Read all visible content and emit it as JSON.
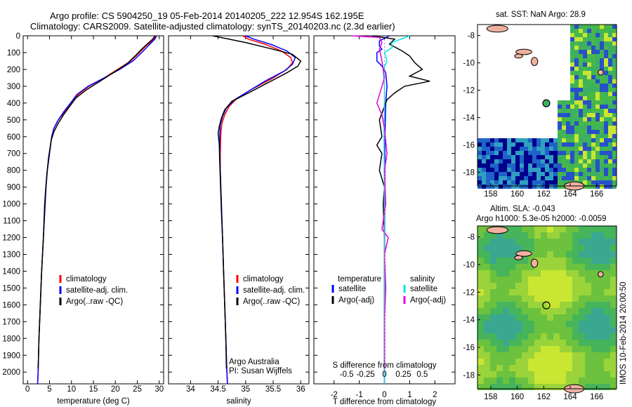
{
  "title": {
    "line1": "Argo profile: CS 5904250_19 05-Feb-2014 20140205_222 12.954S 162.195E",
    "line2": "Climatology: CARS2009. Satellite-adjusted climatology: synTS_20140203.nc (2.3d earlier)"
  },
  "side_stamp": "IMOS 10-Feb-2014 20:00:50",
  "chart_data": [
    {
      "type": "line",
      "xlabel": "temperature (deg C)",
      "ylim": [
        0,
        2070
      ],
      "xlim": [
        -1,
        31
      ],
      "xticks": [
        0,
        5,
        10,
        15,
        20,
        25,
        30
      ],
      "yticks": [
        0,
        100,
        200,
        300,
        400,
        500,
        600,
        700,
        800,
        900,
        1000,
        1100,
        1200,
        1300,
        1400,
        1500,
        1600,
        1700,
        1800,
        1900,
        2000
      ],
      "legend": {
        "position": "lower-center",
        "entries": [
          "climatology",
          "satellite-adj. clim.",
          "Argo(..raw -QC)"
        ]
      },
      "series": [
        {
          "name": "climatology",
          "color": "#ff0000",
          "points": [
            [
              29.2,
              0
            ],
            [
              28.8,
              20
            ],
            [
              27,
              60
            ],
            [
              25.5,
              100
            ],
            [
              23.5,
              150
            ],
            [
              20.5,
              200
            ],
            [
              17.5,
              250
            ],
            [
              14,
              300
            ],
            [
              11.5,
              350
            ],
            [
              10,
              400
            ],
            [
              8.5,
              450
            ],
            [
              7,
              500
            ],
            [
              6,
              550
            ],
            [
              5.5,
              600
            ],
            [
              5,
              700
            ],
            [
              4.5,
              800
            ],
            [
              4.2,
              900
            ],
            [
              4,
              1000
            ],
            [
              3.6,
              1200
            ],
            [
              3.2,
              1400
            ],
            [
              2.9,
              1600
            ],
            [
              2.6,
              1800
            ],
            [
              2.4,
              2000
            ],
            [
              2.3,
              2070
            ]
          ]
        },
        {
          "name": "satellite-adj. clim.",
          "color": "#0000ff",
          "points": [
            [
              29.4,
              0
            ],
            [
              29,
              20
            ],
            [
              27.5,
              60
            ],
            [
              26,
              100
            ],
            [
              24,
              150
            ],
            [
              21,
              200
            ],
            [
              17.5,
              250
            ],
            [
              13.8,
              300
            ],
            [
              11.2,
              350
            ],
            [
              9.8,
              400
            ],
            [
              8.3,
              450
            ],
            [
              7,
              500
            ],
            [
              6,
              550
            ],
            [
              5.5,
              600
            ],
            [
              5,
              700
            ],
            [
              4.5,
              800
            ],
            [
              4.2,
              900
            ],
            [
              4,
              1000
            ],
            [
              3.6,
              1200
            ],
            [
              3.2,
              1400
            ],
            [
              2.9,
              1600
            ],
            [
              2.6,
              1800
            ],
            [
              2.4,
              2000
            ],
            [
              2.3,
              2070
            ]
          ]
        },
        {
          "name": "Argo(..raw -QC)",
          "color": "#000000",
          "points": [
            [
              29,
              0
            ],
            [
              28.5,
              20
            ],
            [
              27.2,
              50
            ],
            [
              26,
              80
            ],
            [
              24.5,
              120
            ],
            [
              22.5,
              170
            ],
            [
              19.5,
              220
            ],
            [
              16.5,
              270
            ],
            [
              13.5,
              320
            ],
            [
              11,
              370
            ],
            [
              9.6,
              420
            ],
            [
              8.2,
              470
            ],
            [
              7,
              520
            ],
            [
              6,
              570
            ],
            [
              5.4,
              620
            ],
            [
              4.8,
              720
            ],
            [
              4.4,
              820
            ],
            [
              4.1,
              920
            ],
            [
              3.9,
              1000
            ],
            [
              3.6,
              1200
            ],
            [
              3.2,
              1400
            ],
            [
              2.9,
              1600
            ],
            [
              2.6,
              1800
            ],
            [
              2.4,
              1980
            ]
          ]
        }
      ]
    },
    {
      "type": "line",
      "xlabel": "salinity",
      "ylim": [
        0,
        2070
      ],
      "xlim": [
        33.6,
        36.15
      ],
      "xticks": [
        34,
        34.5,
        35,
        35.5,
        36
      ],
      "legend": {
        "position": "lower-center",
        "entries": [
          "climatology",
          "satellite-adj. clim.",
          "Argo(..raw -QC)"
        ]
      },
      "annotation": {
        "line1": "Argo Australia",
        "line2": "PI: Susan Wijffels"
      },
      "series": [
        {
          "name": "climatology",
          "color": "#ff0000",
          "points": [
            [
              34.95,
              0
            ],
            [
              35.05,
              20
            ],
            [
              35.35,
              50
            ],
            [
              35.65,
              90
            ],
            [
              35.82,
              130
            ],
            [
              35.85,
              160
            ],
            [
              35.75,
              200
            ],
            [
              35.45,
              260
            ],
            [
              35.1,
              320
            ],
            [
              34.85,
              370
            ],
            [
              34.7,
              420
            ],
            [
              34.62,
              470
            ],
            [
              34.57,
              520
            ],
            [
              34.55,
              580
            ],
            [
              34.54,
              700
            ],
            [
              34.54,
              800
            ],
            [
              34.55,
              900
            ],
            [
              34.56,
              1000
            ],
            [
              34.58,
              1200
            ],
            [
              34.6,
              1400
            ],
            [
              34.62,
              1600
            ],
            [
              34.64,
              1800
            ],
            [
              34.66,
              2000
            ],
            [
              34.67,
              2070
            ]
          ]
        },
        {
          "name": "satellite-adj. clim.",
          "color": "#0000ff",
          "points": [
            [
              35,
              0
            ],
            [
              35.15,
              20
            ],
            [
              35.45,
              50
            ],
            [
              35.75,
              90
            ],
            [
              35.9,
              130
            ],
            [
              35.85,
              170
            ],
            [
              35.7,
              210
            ],
            [
              35.35,
              270
            ],
            [
              35.05,
              330
            ],
            [
              34.8,
              380
            ],
            [
              34.65,
              430
            ],
            [
              34.58,
              480
            ],
            [
              34.54,
              530
            ],
            [
              34.53,
              600
            ],
            [
              34.53,
              700
            ],
            [
              34.54,
              800
            ],
            [
              34.55,
              900
            ],
            [
              34.56,
              1000
            ],
            [
              34.58,
              1200
            ],
            [
              34.6,
              1400
            ],
            [
              34.62,
              1600
            ],
            [
              34.64,
              1800
            ],
            [
              34.66,
              2000
            ],
            [
              34.67,
              2070
            ]
          ]
        },
        {
          "name": "Argo(..raw -QC)",
          "color": "#000000",
          "points": [
            [
              34.4,
              0
            ],
            [
              34.55,
              10
            ],
            [
              35,
              40
            ],
            [
              35.5,
              80
            ],
            [
              35.85,
              110
            ],
            [
              36.0,
              150
            ],
            [
              35.95,
              180
            ],
            [
              35.75,
              220
            ],
            [
              35.4,
              280
            ],
            [
              35.05,
              340
            ],
            [
              34.75,
              390
            ],
            [
              34.62,
              440
            ],
            [
              34.56,
              490
            ],
            [
              34.52,
              540
            ],
            [
              34.5,
              580
            ],
            [
              34.52,
              640
            ],
            [
              34.53,
              750
            ],
            [
              34.54,
              850
            ],
            [
              34.55,
              950
            ],
            [
              34.56,
              1050
            ],
            [
              34.58,
              1200
            ],
            [
              34.6,
              1400
            ],
            [
              34.62,
              1600
            ],
            [
              34.64,
              1800
            ],
            [
              34.65,
              1980
            ]
          ]
        }
      ]
    },
    {
      "type": "line",
      "xlabel": "T difference from climatology",
      "xlabel_top": "S difference from climatology",
      "ylim": [
        0,
        2070
      ],
      "xlim": [
        -2.8,
        2.8
      ],
      "xticks": [
        -2,
        -1,
        0,
        1,
        2
      ],
      "xticks_top_labels": [
        "-0.5",
        "-0.25",
        "0",
        "0.25",
        "0.5"
      ],
      "legend": {
        "position": "lower",
        "groups": [
          "temperature",
          "salinity"
        ],
        "entries": [
          "satellite",
          "Argo(-adj)",
          "satellite",
          "Argo(-adj)"
        ]
      },
      "series": [
        {
          "name": "satellite",
          "group": "temperature",
          "color": "#0000ff",
          "points": [
            [
              0.2,
              0
            ],
            [
              -0.2,
              30
            ],
            [
              -0.2,
              60
            ],
            [
              -0.1,
              80
            ],
            [
              -0.3,
              100
            ],
            [
              -0.3,
              150
            ],
            [
              -0.1,
              180
            ],
            [
              0.05,
              220
            ],
            [
              0.1,
              300
            ],
            [
              0.05,
              400
            ],
            [
              0.02,
              600
            ],
            [
              0.01,
              1000
            ],
            [
              0,
              1500
            ],
            [
              0,
              2000
            ],
            [
              0,
              2070
            ]
          ]
        },
        {
          "name": "Argo(-adj)",
          "group": "temperature",
          "color": "#000000",
          "points": [
            [
              -0.5,
              0
            ],
            [
              0.4,
              20
            ],
            [
              0.2,
              50
            ],
            [
              0.7,
              90
            ],
            [
              1.0,
              120
            ],
            [
              1.2,
              160
            ],
            [
              1.5,
              200
            ],
            [
              1.0,
              240
            ],
            [
              1.8,
              270
            ],
            [
              0.8,
              300
            ],
            [
              0.4,
              340
            ],
            [
              0.1,
              380
            ],
            [
              0,
              420
            ],
            [
              -0.2,
              500
            ],
            [
              -0.1,
              600
            ],
            [
              -0.3,
              650
            ],
            [
              -0.1,
              700
            ],
            [
              -0.2,
              800
            ],
            [
              0,
              900
            ],
            [
              -0.05,
              1000
            ],
            [
              0,
              1200
            ],
            [
              0,
              1500
            ],
            [
              0,
              1800
            ],
            [
              0,
              1980
            ]
          ]
        },
        {
          "name": "satellite",
          "group": "salinity",
          "color": "#00e5ee",
          "points": [
            [
              1.0,
              0
            ],
            [
              0.3,
              40
            ],
            [
              0.3,
              70
            ],
            [
              0,
              100
            ],
            [
              0.1,
              150
            ],
            [
              -0.05,
              200
            ],
            [
              0,
              300
            ],
            [
              0,
              400
            ],
            [
              -0.02,
              600
            ],
            [
              0,
              1000
            ],
            [
              0,
              1500
            ],
            [
              0,
              2000
            ],
            [
              0,
              2070
            ]
          ]
        },
        {
          "name": "Argo(-adj)",
          "group": "salinity",
          "color": "#e000e0",
          "points": [
            [
              -1.3,
              0
            ],
            [
              -0.2,
              10
            ],
            [
              -0.1,
              40
            ],
            [
              -0.2,
              80
            ],
            [
              -0.1,
              150
            ],
            [
              0,
              250
            ],
            [
              -0.3,
              400
            ],
            [
              -0.1,
              470
            ],
            [
              0,
              550
            ],
            [
              0.1,
              700
            ],
            [
              0,
              800
            ],
            [
              0.05,
              1000
            ],
            [
              -0.1,
              1150
            ],
            [
              0.15,
              1200
            ],
            [
              0,
              1300
            ],
            [
              0.05,
              1500
            ],
            [
              0,
              1700
            ],
            [
              0,
              1980
            ]
          ]
        }
      ]
    },
    {
      "type": "heatmap",
      "title": "sat. SST: NaN Argo: 28.9",
      "xticks": [
        158,
        160,
        162,
        164,
        166
      ],
      "yticks": [
        -8,
        -10,
        -12,
        -14,
        -16,
        -18
      ],
      "xlim": [
        157,
        167.5
      ],
      "ylim": [
        -19,
        -7.2
      ],
      "marker": {
        "lon": 162.195,
        "lat": -12.954
      }
    },
    {
      "type": "heatmap",
      "title_line1": "Altim. SLA: -0.043",
      "title_line2": "Argo h1000: 5.3e-05 h2000: -0.0059",
      "xticks": [
        158,
        160,
        162,
        164,
        166
      ],
      "yticks": [
        -8,
        -10,
        -12,
        -14,
        -16,
        -18
      ],
      "xlim": [
        157,
        167.5
      ],
      "ylim": [
        -19,
        -7.2
      ],
      "marker": {
        "lon": 162.195,
        "lat": -12.954
      }
    }
  ]
}
